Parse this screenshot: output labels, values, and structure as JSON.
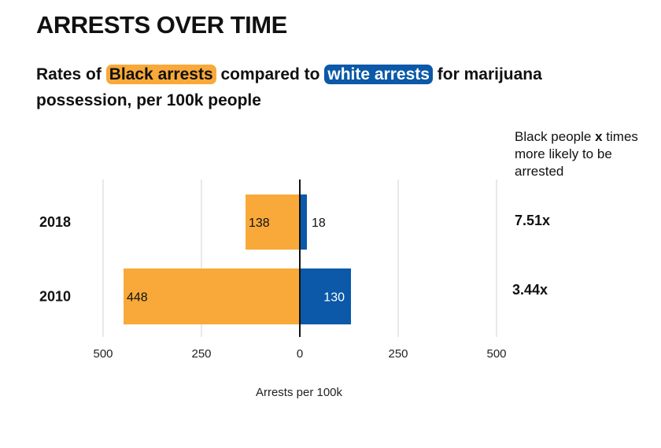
{
  "header": {
    "title": "ARRESTS OVER TIME",
    "subtitle_pre": "Rates of",
    "subtitle_black": "Black arrests",
    "subtitle_mid": "compared to",
    "subtitle_white": "white arrests",
    "subtitle_post": "for marijuana possession, per 100k people"
  },
  "side_note": {
    "line1_pre": "Black people",
    "line1_x": "x",
    "rest": "times more likely to be arrested"
  },
  "colors": {
    "black": "#f8a93a",
    "white": "#0b59a8",
    "axis": "#111111",
    "grid": "#e9e9e9"
  },
  "chart_data": {
    "type": "bar",
    "orientation": "horizontal-diverging",
    "title": "ARRESTS OVER TIME",
    "xlabel": "Arrests per 100k",
    "ylabel": "",
    "categories": [
      "2018",
      "2010"
    ],
    "series": [
      {
        "name": "Black arrests",
        "values": [
          138,
          448
        ],
        "direction": "left"
      },
      {
        "name": "white arrests",
        "values": [
          18,
          130
        ],
        "direction": "right"
      }
    ],
    "ratios": [
      "7.51x",
      "3.44x"
    ],
    "xlim": [
      -500,
      500
    ],
    "xticks": [
      -500,
      -250,
      0,
      250,
      500
    ],
    "xtick_labels": [
      "500",
      "250",
      "0",
      "250",
      "500"
    ],
    "grid": true
  }
}
